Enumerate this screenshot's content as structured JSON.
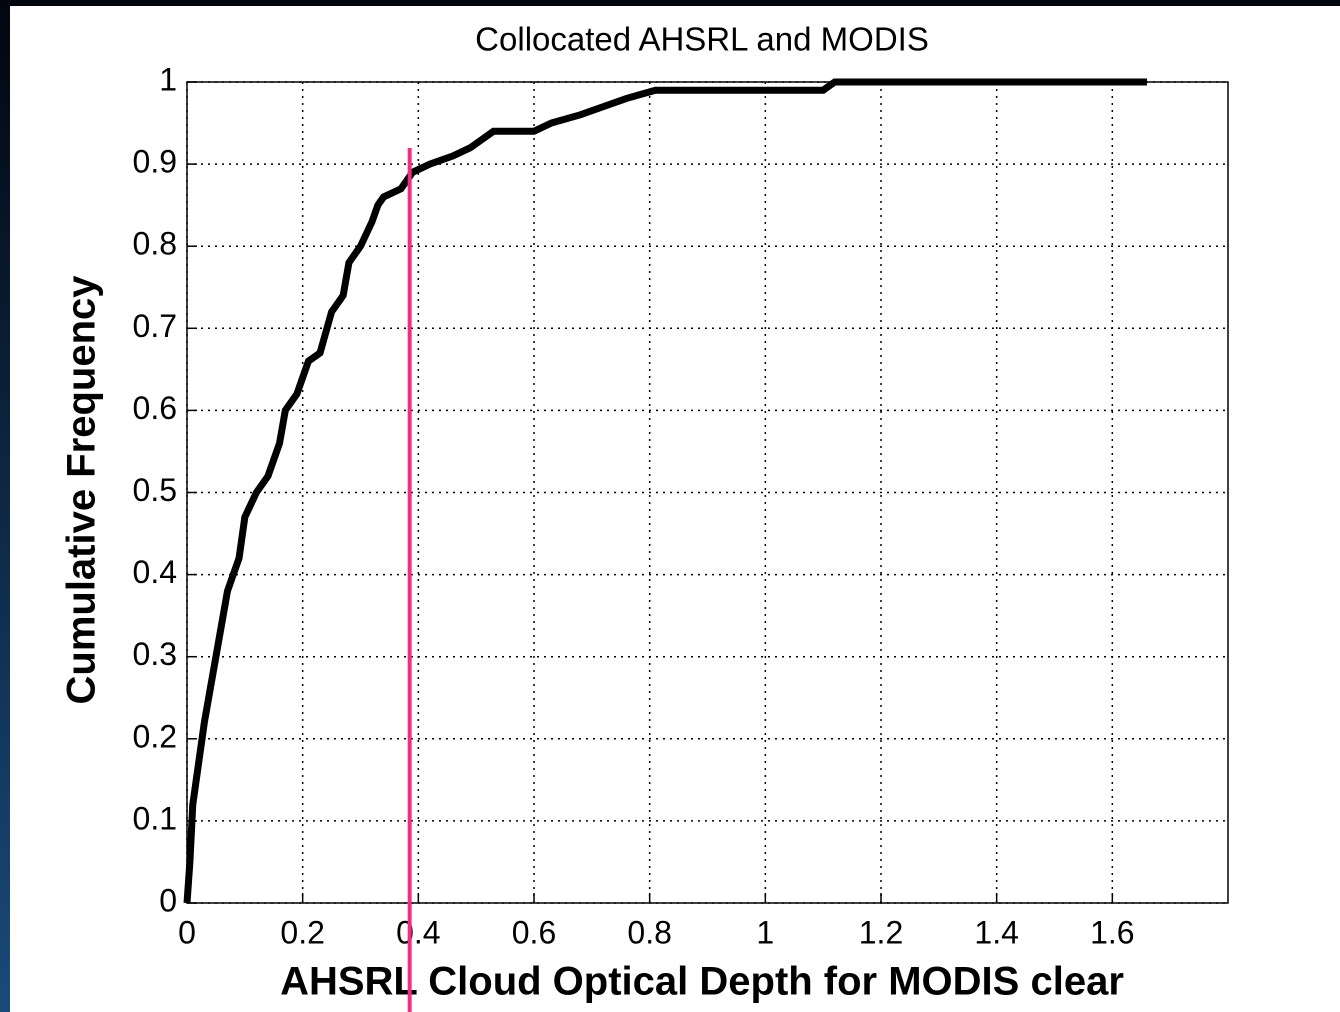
{
  "chart_data": {
    "type": "line",
    "title": "Collocated AHSRL and MODIS",
    "xlabel": "AHSRL Cloud Optical Depth for MODIS clear",
    "ylabel": "Cumulative Frequency",
    "x": [
      0,
      0.005,
      0.01,
      0.02,
      0.03,
      0.04,
      0.05,
      0.06,
      0.07,
      0.09,
      0.1,
      0.12,
      0.14,
      0.16,
      0.17,
      0.19,
      0.21,
      0.23,
      0.25,
      0.27,
      0.28,
      0.3,
      0.32,
      0.33,
      0.34,
      0.37,
      0.39,
      0.42,
      0.46,
      0.49,
      0.53,
      0.6,
      0.63,
      0.68,
      0.72,
      0.76,
      0.81,
      1.1,
      1.12,
      1.66
    ],
    "values": [
      0,
      0.05,
      0.12,
      0.17,
      0.22,
      0.26,
      0.3,
      0.34,
      0.38,
      0.42,
      0.47,
      0.5,
      0.52,
      0.56,
      0.6,
      0.62,
      0.66,
      0.67,
      0.72,
      0.74,
      0.78,
      0.8,
      0.83,
      0.85,
      0.86,
      0.87,
      0.89,
      0.9,
      0.91,
      0.92,
      0.94,
      0.94,
      0.95,
      0.96,
      0.97,
      0.98,
      0.99,
      0.99,
      1,
      1
    ],
    "color": "#000000",
    "xlim": [
      0,
      1.8
    ],
    "ylim": [
      0,
      1
    ],
    "xticks": [
      0,
      0.2,
      0.4,
      0.6,
      0.8,
      1,
      1.2,
      1.4,
      1.6
    ],
    "yticks": [
      0,
      0.1,
      0.2,
      0.3,
      0.4,
      0.5,
      0.6,
      0.7,
      0.8,
      0.9,
      1
    ],
    "grid": true,
    "vline": {
      "x": 0.385,
      "color": "#f0307e"
    }
  }
}
